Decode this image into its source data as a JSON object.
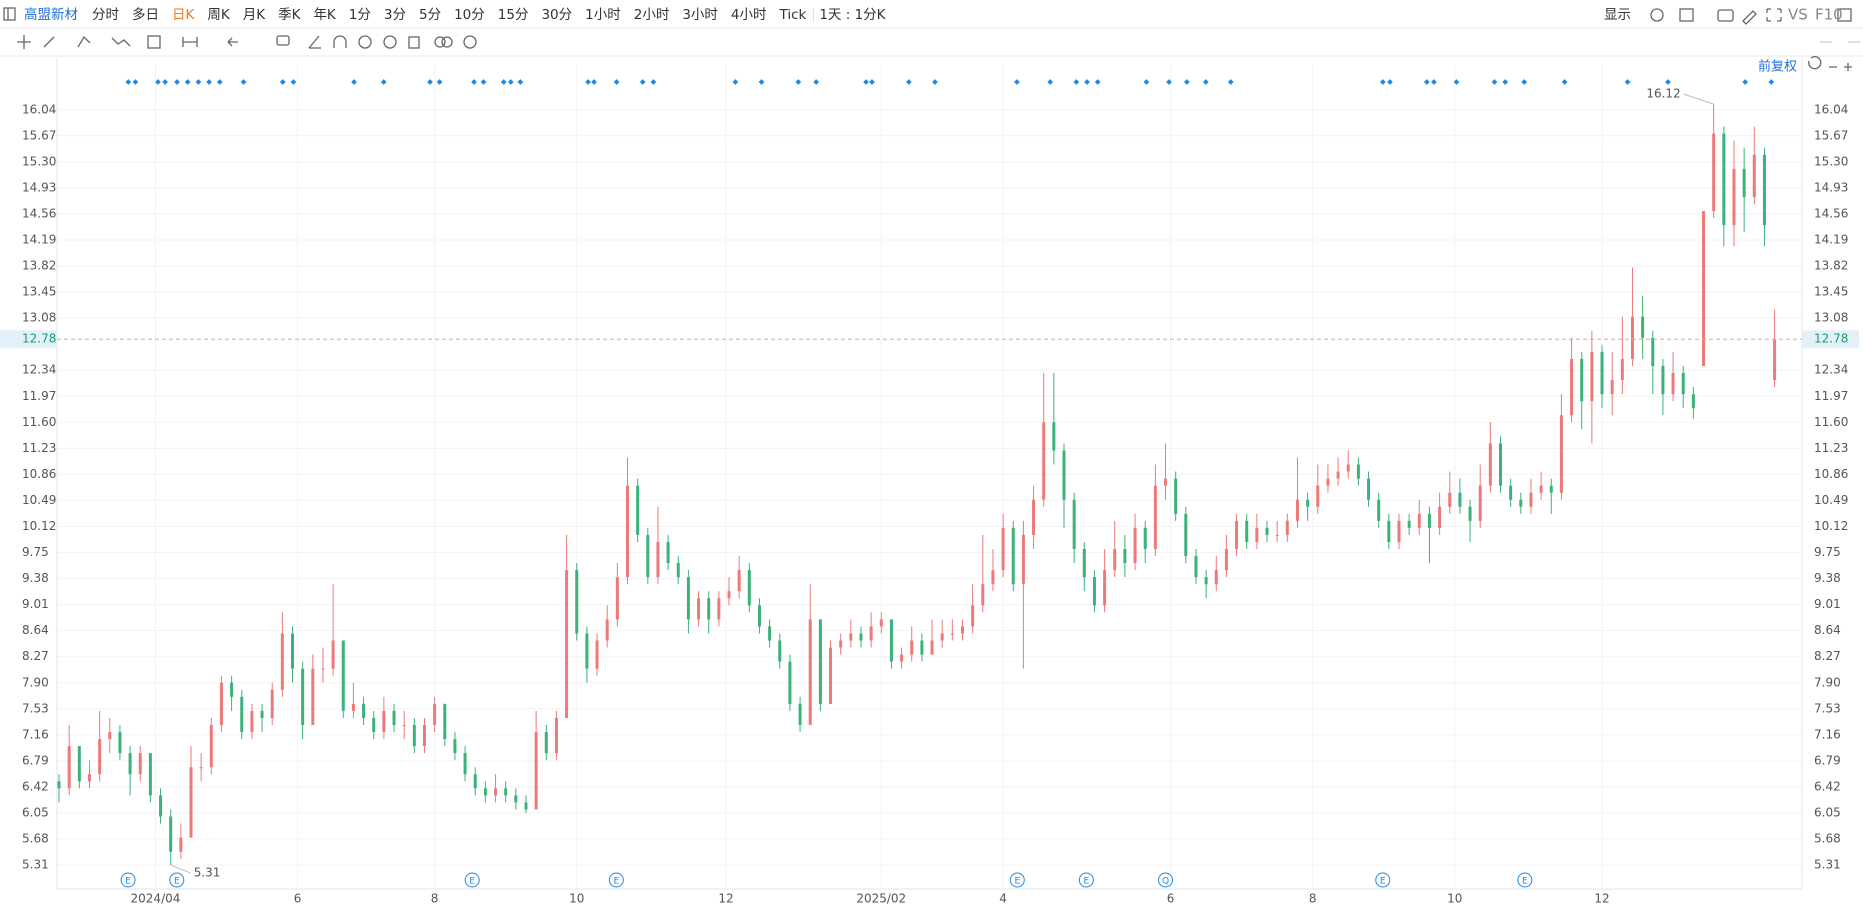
{
  "toolbar": {
    "symbol": "高盟新材",
    "periods": [
      "分时",
      "多日",
      "日K",
      "周K",
      "月K",
      "季K",
      "年K",
      "1分",
      "3分",
      "5分",
      "10分",
      "15分",
      "30分",
      "1小时",
      "2小时",
      "3小时",
      "4小时",
      "Tick"
    ],
    "active_period": 2,
    "interval": "1天 : 1分K",
    "display": "显示",
    "vs": "VS",
    "f10": "F10"
  },
  "chart_data": {
    "type": "candlestick",
    "adjust": "前复权",
    "up_color": "#ec7a7a",
    "down_color": "#3bb27a",
    "grid": true,
    "xlim": [
      -0.2,
      171.7
    ],
    "ylim": [
      4.97,
      16.69
    ],
    "xticks": [
      {
        "value": 9.5,
        "label": "2024/04"
      },
      {
        "value": 23.5,
        "label": "6"
      },
      {
        "value": 37,
        "label": "8"
      },
      {
        "value": 51,
        "label": "10"
      },
      {
        "value": 65.7,
        "label": "12"
      },
      {
        "value": 81,
        "label": "2025/02"
      },
      {
        "value": 93,
        "label": "4"
      },
      {
        "value": 109.5,
        "label": "6"
      },
      {
        "value": 123.5,
        "label": "8"
      },
      {
        "value": 137.5,
        "label": "10"
      },
      {
        "value": 152,
        "label": "12"
      }
    ],
    "yticks": [
      {
        "value": 16.04,
        "label": "16.04"
      },
      {
        "value": 15.67,
        "label": "15.67"
      },
      {
        "value": 15.3,
        "label": "15.30"
      },
      {
        "value": 14.93,
        "label": "14.93"
      },
      {
        "value": 14.56,
        "label": "14.56"
      },
      {
        "value": 14.19,
        "label": "14.19"
      },
      {
        "value": 13.82,
        "label": "13.82"
      },
      {
        "value": 13.45,
        "label": "13.45"
      },
      {
        "value": 13.08,
        "label": "13.08"
      },
      {
        "value": 12.34,
        "label": "12.34"
      },
      {
        "value": 11.97,
        "label": "11.97"
      },
      {
        "value": 11.6,
        "label": "11.60"
      },
      {
        "value": 11.23,
        "label": "11.23"
      },
      {
        "value": 10.86,
        "label": "10.86"
      },
      {
        "value": 10.49,
        "label": "10.49"
      },
      {
        "value": 10.12,
        "label": "10.12"
      },
      {
        "value": 9.75,
        "label": "9.75"
      },
      {
        "value": 9.38,
        "label": "9.38"
      },
      {
        "value": 9.01,
        "label": "9.01"
      },
      {
        "value": 8.64,
        "label": "8.64"
      },
      {
        "value": 8.27,
        "label": "8.27"
      },
      {
        "value": 7.9,
        "label": "7.90"
      },
      {
        "value": 7.53,
        "label": "7.53"
      },
      {
        "value": 7.16,
        "label": "7.16"
      },
      {
        "value": 6.79,
        "label": "6.79"
      },
      {
        "value": 6.42,
        "label": "6.42"
      },
      {
        "value": 6.05,
        "label": "6.05"
      },
      {
        "value": 5.68,
        "label": "5.68"
      },
      {
        "value": 5.31,
        "label": "5.31"
      }
    ],
    "events": [
      {
        "x": 6.8,
        "label": "E"
      },
      {
        "x": 11.6,
        "label": "E"
      },
      {
        "x": 40.7,
        "label": "E"
      },
      {
        "x": 54.9,
        "label": "E"
      },
      {
        "x": 94.4,
        "label": "E"
      },
      {
        "x": 101.2,
        "label": "E"
      },
      {
        "x": 109,
        "label": "Q"
      },
      {
        "x": 130.4,
        "label": "E"
      },
      {
        "x": 144.4,
        "label": "E"
      }
    ],
    "candles": [
      [
        6.5,
        6.6,
        6.2,
        6.4
      ],
      [
        6.4,
        7.3,
        6.3,
        7.0
      ],
      [
        7.0,
        7.0,
        6.4,
        6.5
      ],
      [
        6.5,
        6.8,
        6.4,
        6.6
      ],
      [
        6.6,
        7.5,
        6.5,
        7.1
      ],
      [
        7.1,
        7.4,
        6.9,
        7.2
      ],
      [
        7.2,
        7.3,
        6.8,
        6.9
      ],
      [
        6.9,
        7.0,
        6.3,
        6.6
      ],
      [
        6.6,
        7.0,
        6.5,
        6.9
      ],
      [
        6.9,
        6.9,
        6.2,
        6.3
      ],
      [
        6.3,
        6.4,
        5.9,
        6.0
      ],
      [
        6.0,
        6.1,
        5.31,
        5.5
      ],
      [
        5.5,
        5.9,
        5.4,
        5.7
      ],
      [
        5.7,
        7.0,
        5.7,
        6.7
      ],
      [
        6.7,
        6.9,
        6.5,
        6.7
      ],
      [
        6.7,
        7.4,
        6.6,
        7.3
      ],
      [
        7.3,
        8.0,
        7.2,
        7.9
      ],
      [
        7.9,
        8.0,
        7.5,
        7.7
      ],
      [
        7.7,
        7.8,
        7.1,
        7.2
      ],
      [
        7.2,
        7.6,
        7.1,
        7.5
      ],
      [
        7.5,
        7.6,
        7.2,
        7.4
      ],
      [
        7.4,
        7.9,
        7.3,
        7.8
      ],
      [
        7.8,
        8.9,
        7.7,
        8.6
      ],
      [
        8.6,
        8.7,
        7.9,
        8.1
      ],
      [
        8.1,
        8.2,
        7.1,
        7.3
      ],
      [
        7.3,
        8.3,
        7.3,
        8.1
      ],
      [
        8.1,
        8.4,
        7.9,
        8.1
      ],
      [
        8.1,
        9.3,
        8.0,
        8.5
      ],
      [
        8.5,
        8.5,
        7.4,
        7.5
      ],
      [
        7.5,
        7.9,
        7.4,
        7.6
      ],
      [
        7.6,
        7.7,
        7.3,
        7.4
      ],
      [
        7.4,
        7.5,
        7.1,
        7.2
      ],
      [
        7.2,
        7.7,
        7.1,
        7.5
      ],
      [
        7.5,
        7.6,
        7.2,
        7.3
      ],
      [
        7.3,
        7.5,
        7.1,
        7.3
      ],
      [
        7.3,
        7.4,
        6.9,
        7.0
      ],
      [
        7.0,
        7.4,
        6.9,
        7.3
      ],
      [
        7.3,
        7.7,
        7.2,
        7.6
      ],
      [
        7.6,
        7.6,
        7.0,
        7.1
      ],
      [
        7.1,
        7.2,
        6.8,
        6.9
      ],
      [
        6.9,
        7.0,
        6.5,
        6.6
      ],
      [
        6.6,
        6.7,
        6.3,
        6.4
      ],
      [
        6.4,
        6.5,
        6.2,
        6.3
      ],
      [
        6.3,
        6.6,
        6.2,
        6.4
      ],
      [
        6.4,
        6.5,
        6.2,
        6.3
      ],
      [
        6.3,
        6.4,
        6.1,
        6.2
      ],
      [
        6.2,
        6.3,
        6.05,
        6.1
      ],
      [
        6.1,
        7.5,
        6.1,
        7.2
      ],
      [
        7.2,
        7.3,
        6.8,
        6.9
      ],
      [
        6.9,
        7.5,
        6.8,
        7.4
      ],
      [
        7.4,
        10.0,
        7.4,
        9.5
      ],
      [
        9.5,
        9.6,
        8.5,
        8.6
      ],
      [
        8.6,
        8.7,
        7.9,
        8.1
      ],
      [
        8.1,
        8.6,
        8.0,
        8.5
      ],
      [
        8.5,
        9.0,
        8.4,
        8.8
      ],
      [
        8.8,
        9.6,
        8.7,
        9.4
      ],
      [
        9.4,
        11.1,
        9.3,
        10.7
      ],
      [
        10.7,
        10.8,
        9.9,
        10.0
      ],
      [
        10.0,
        10.1,
        9.3,
        9.4
      ],
      [
        9.4,
        10.4,
        9.3,
        9.9
      ],
      [
        9.9,
        10.0,
        9.5,
        9.6
      ],
      [
        9.6,
        9.7,
        9.3,
        9.4
      ],
      [
        9.4,
        9.5,
        8.6,
        8.8
      ],
      [
        8.8,
        9.2,
        8.7,
        9.1
      ],
      [
        9.1,
        9.2,
        8.6,
        8.8
      ],
      [
        8.8,
        9.2,
        8.7,
        9.1
      ],
      [
        9.1,
        9.4,
        9.0,
        9.2
      ],
      [
        9.2,
        9.7,
        9.1,
        9.5
      ],
      [
        9.5,
        9.6,
        8.9,
        9.0
      ],
      [
        9.0,
        9.1,
        8.6,
        8.7
      ],
      [
        8.7,
        8.8,
        8.4,
        8.5
      ],
      [
        8.5,
        8.6,
        8.1,
        8.2
      ],
      [
        8.2,
        8.3,
        7.5,
        7.6
      ],
      [
        7.6,
        7.7,
        7.2,
        7.3
      ],
      [
        7.3,
        9.3,
        7.3,
        8.8
      ],
      [
        8.8,
        8.8,
        7.5,
        7.6
      ],
      [
        7.6,
        8.5,
        7.6,
        8.4
      ],
      [
        8.4,
        8.6,
        8.3,
        8.5
      ],
      [
        8.5,
        8.8,
        8.4,
        8.6
      ],
      [
        8.6,
        8.7,
        8.4,
        8.5
      ],
      [
        8.5,
        8.9,
        8.4,
        8.7
      ],
      [
        8.7,
        8.9,
        8.6,
        8.8
      ],
      [
        8.8,
        8.8,
        8.1,
        8.2
      ],
      [
        8.2,
        8.4,
        8.1,
        8.3
      ],
      [
        8.3,
        8.7,
        8.2,
        8.5
      ],
      [
        8.5,
        8.6,
        8.2,
        8.3
      ],
      [
        8.3,
        8.8,
        8.3,
        8.5
      ],
      [
        8.5,
        8.8,
        8.4,
        8.6
      ],
      [
        8.6,
        8.8,
        8.5,
        8.6
      ],
      [
        8.6,
        8.8,
        8.5,
        8.7
      ],
      [
        8.7,
        9.3,
        8.6,
        9.0
      ],
      [
        9.0,
        10.0,
        8.9,
        9.3
      ],
      [
        9.3,
        9.8,
        9.2,
        9.5
      ],
      [
        9.5,
        10.3,
        9.4,
        10.1
      ],
      [
        10.1,
        10.2,
        9.2,
        9.3
      ],
      [
        9.3,
        10.2,
        8.1,
        10.0
      ],
      [
        10.0,
        10.7,
        9.8,
        10.5
      ],
      [
        10.5,
        12.3,
        10.4,
        11.6
      ],
      [
        11.6,
        12.3,
        11.0,
        11.2
      ],
      [
        11.2,
        11.3,
        10.1,
        10.5
      ],
      [
        10.5,
        10.6,
        9.6,
        9.8
      ],
      [
        9.8,
        9.9,
        9.2,
        9.4
      ],
      [
        9.4,
        9.5,
        8.9,
        9.0
      ],
      [
        9.0,
        9.8,
        8.9,
        9.5
      ],
      [
        9.5,
        10.2,
        9.4,
        9.8
      ],
      [
        9.8,
        10.0,
        9.4,
        9.6
      ],
      [
        9.6,
        10.3,
        9.5,
        10.1
      ],
      [
        10.1,
        10.2,
        9.6,
        9.8
      ],
      [
        9.8,
        11.0,
        9.7,
        10.7
      ],
      [
        10.7,
        11.3,
        10.5,
        10.8
      ],
      [
        10.8,
        10.9,
        10.2,
        10.3
      ],
      [
        10.3,
        10.4,
        9.6,
        9.7
      ],
      [
        9.7,
        9.8,
        9.3,
        9.4
      ],
      [
        9.4,
        9.5,
        9.1,
        9.3
      ],
      [
        9.3,
        9.7,
        9.2,
        9.5
      ],
      [
        9.5,
        10.0,
        9.4,
        9.8
      ],
      [
        9.8,
        10.3,
        9.7,
        10.2
      ],
      [
        10.2,
        10.3,
        9.8,
        9.9
      ],
      [
        9.9,
        10.3,
        9.8,
        10.1
      ],
      [
        10.1,
        10.2,
        9.9,
        10.0
      ],
      [
        10.0,
        10.2,
        9.9,
        10.0
      ],
      [
        10.0,
        10.3,
        9.9,
        10.2
      ],
      [
        10.2,
        11.1,
        10.1,
        10.5
      ],
      [
        10.5,
        10.6,
        10.2,
        10.4
      ],
      [
        10.4,
        11.0,
        10.3,
        10.7
      ],
      [
        10.7,
        11.0,
        10.6,
        10.8
      ],
      [
        10.8,
        11.1,
        10.7,
        10.9
      ],
      [
        10.9,
        11.2,
        10.8,
        11.0
      ],
      [
        11.0,
        11.1,
        10.7,
        10.8
      ],
      [
        10.8,
        10.9,
        10.4,
        10.5
      ],
      [
        10.5,
        10.6,
        10.1,
        10.2
      ],
      [
        10.2,
        10.3,
        9.8,
        9.9
      ],
      [
        9.9,
        10.3,
        9.8,
        10.2
      ],
      [
        10.2,
        10.3,
        10.0,
        10.1
      ],
      [
        10.1,
        10.5,
        10.0,
        10.3
      ],
      [
        10.3,
        10.4,
        9.6,
        10.1
      ],
      [
        10.1,
        10.6,
        10.0,
        10.4
      ],
      [
        10.4,
        10.9,
        10.3,
        10.6
      ],
      [
        10.6,
        10.8,
        10.3,
        10.4
      ],
      [
        10.4,
        10.5,
        9.9,
        10.2
      ],
      [
        10.2,
        11.0,
        10.1,
        10.7
      ],
      [
        10.7,
        11.6,
        10.6,
        11.3
      ],
      [
        11.3,
        11.4,
        10.6,
        10.7
      ],
      [
        10.7,
        10.8,
        10.4,
        10.5
      ],
      [
        10.5,
        10.6,
        10.3,
        10.4
      ],
      [
        10.4,
        10.8,
        10.3,
        10.6
      ],
      [
        10.6,
        10.9,
        10.5,
        10.7
      ],
      [
        10.7,
        10.8,
        10.3,
        10.6
      ],
      [
        10.6,
        12.0,
        10.5,
        11.7
      ],
      [
        11.7,
        12.8,
        11.6,
        12.5
      ],
      [
        12.5,
        12.6,
        11.5,
        11.9
      ],
      [
        11.9,
        12.9,
        11.3,
        12.6
      ],
      [
        12.6,
        12.7,
        11.8,
        12.0
      ],
      [
        12.0,
        12.6,
        11.7,
        12.2
      ],
      [
        12.2,
        13.1,
        12.0,
        12.5
      ],
      [
        12.5,
        13.8,
        12.4,
        13.1
      ],
      [
        13.1,
        13.4,
        12.5,
        12.8
      ],
      [
        12.8,
        12.9,
        12.0,
        12.4
      ],
      [
        12.4,
        12.5,
        11.7,
        12.0
      ],
      [
        12.0,
        12.6,
        11.9,
        12.3
      ],
      [
        12.3,
        12.4,
        11.8,
        12.0
      ],
      [
        12.0,
        12.1,
        11.65,
        11.8
      ],
      [
        12.4,
        14.6,
        12.4,
        14.6
      ],
      [
        14.6,
        16.12,
        14.5,
        15.7
      ],
      [
        15.7,
        15.8,
        14.1,
        14.4
      ],
      [
        14.4,
        15.6,
        14.1,
        15.2
      ],
      [
        15.2,
        15.5,
        14.3,
        14.8
      ],
      [
        14.8,
        15.8,
        14.7,
        15.4
      ],
      [
        15.4,
        15.5,
        14.1,
        14.4
      ],
      [
        12.2,
        13.2,
        12.1,
        12.78
      ]
    ]
  }
}
